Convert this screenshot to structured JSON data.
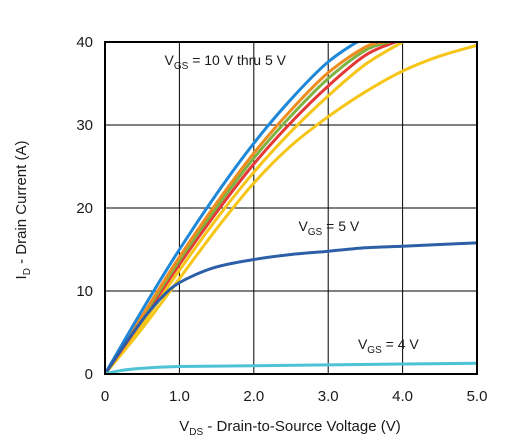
{
  "chart_data": {
    "type": "line",
    "title": "",
    "xlabel": {
      "main": "V",
      "sub": "DS",
      "rest": " - Drain-to-Source Voltage (V)"
    },
    "ylabel": {
      "main": "I",
      "sub": "D",
      "rest": " - Drain Current (A)"
    },
    "xlim": [
      0,
      5
    ],
    "ylim": [
      0,
      40
    ],
    "xticks": [
      0,
      1,
      2,
      3,
      4,
      5
    ],
    "xtick_labels": [
      "0",
      "1.0",
      "2.0",
      "3.0",
      "4.0",
      "5.0"
    ],
    "yticks": [
      0,
      10,
      20,
      30,
      40
    ],
    "ytick_labels": [
      "0",
      "10",
      "20",
      "30",
      "40"
    ],
    "grid": true,
    "annotations": [
      {
        "main": "V",
        "sub": "GS",
        "rest": " = 10 V thru 5 V",
        "at": [
          0.8,
          37.2
        ]
      },
      {
        "main": "V",
        "sub": "GS",
        "rest": " = 5 V",
        "at": [
          2.6,
          17.2
        ]
      },
      {
        "main": "V",
        "sub": "GS",
        "rest": " = 4 V",
        "at": [
          3.4,
          3.0
        ]
      }
    ],
    "series": [
      {
        "color": "#f5c518",
        "x": [
          0,
          0.5,
          1.0,
          1.5,
          2.0,
          2.5,
          3.0,
          3.5,
          4.0,
          4.5,
          5.0
        ],
        "y": [
          0,
          5.5,
          11.5,
          17.5,
          23.0,
          27.5,
          31.0,
          34.0,
          36.5,
          38.3,
          39.6
        ]
      },
      {
        "color": "#f5c518",
        "x": [
          0,
          0.5,
          1.0,
          1.5,
          2.0,
          2.5,
          3.0,
          3.5,
          4.0
        ],
        "y": [
          0,
          6.0,
          12.5,
          18.7,
          24.3,
          29.2,
          33.5,
          37.3,
          40.0
        ]
      },
      {
        "color": "#e53935",
        "x": [
          0,
          0.5,
          1.0,
          1.5,
          2.0,
          2.5,
          3.0,
          3.5,
          3.9
        ],
        "y": [
          0,
          6.5,
          13.2,
          19.5,
          25.3,
          30.3,
          34.7,
          38.4,
          40.0
        ]
      },
      {
        "color": "#7cb342",
        "x": [
          0,
          0.5,
          1.0,
          1.5,
          2.0,
          2.5,
          3.0,
          3.5,
          3.82
        ],
        "y": [
          0,
          6.8,
          13.7,
          20.1,
          26.0,
          31.1,
          35.6,
          39.0,
          40.0
        ]
      },
      {
        "color": "#ef8c1f",
        "x": [
          0,
          0.5,
          1.0,
          1.5,
          2.0,
          2.5,
          3.0,
          3.5,
          3.75
        ],
        "y": [
          0,
          7.0,
          14.1,
          20.6,
          26.6,
          31.8,
          36.3,
          39.4,
          40.0
        ]
      },
      {
        "color": "#1e88d8",
        "x": [
          0,
          0.5,
          1.0,
          1.5,
          2.0,
          2.5,
          3.0,
          3.5,
          3.65
        ],
        "y": [
          0,
          7.7,
          15.0,
          21.7,
          27.8,
          33.1,
          37.6,
          40.5,
          40.0
        ]
      },
      {
        "color": "#2c5fa8",
        "x": [
          0,
          0.3,
          0.6,
          0.9,
          1.2,
          1.5,
          2.0,
          2.5,
          3.0,
          3.5,
          4.0,
          4.5,
          5.0
        ],
        "y": [
          0,
          4.0,
          7.6,
          10.4,
          11.9,
          12.9,
          13.8,
          14.4,
          14.8,
          15.2,
          15.4,
          15.6,
          15.8
        ]
      },
      {
        "color": "#4fc3d6",
        "x": [
          0,
          0.2,
          0.5,
          1.0,
          2.0,
          3.0,
          4.0,
          5.0
        ],
        "y": [
          0,
          0.4,
          0.7,
          0.9,
          1.0,
          1.1,
          1.2,
          1.3
        ]
      }
    ]
  }
}
